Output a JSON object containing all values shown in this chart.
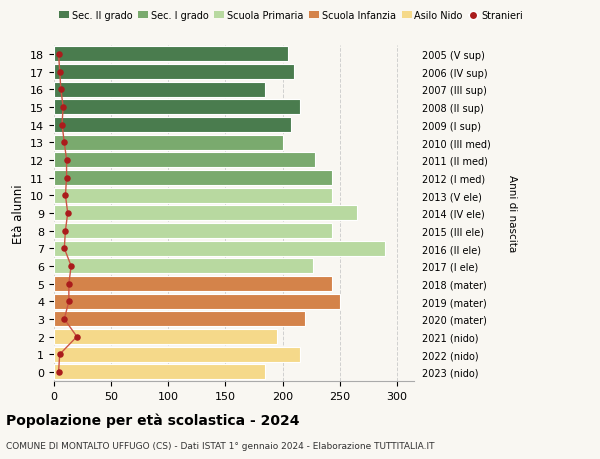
{
  "ages": [
    18,
    17,
    16,
    15,
    14,
    13,
    12,
    11,
    10,
    9,
    8,
    7,
    6,
    5,
    4,
    3,
    2,
    1,
    0
  ],
  "values": [
    205,
    210,
    185,
    215,
    207,
    200,
    228,
    243,
    243,
    265,
    243,
    290,
    227,
    243,
    250,
    220,
    195,
    215,
    185
  ],
  "stranieri": [
    4,
    5,
    6,
    8,
    7,
    9,
    11,
    11,
    10,
    12,
    10,
    9,
    15,
    13,
    13,
    9,
    20,
    5,
    4
  ],
  "right_labels": [
    "2005 (V sup)",
    "2006 (IV sup)",
    "2007 (III sup)",
    "2008 (II sup)",
    "2009 (I sup)",
    "2010 (III med)",
    "2011 (II med)",
    "2012 (I med)",
    "2013 (V ele)",
    "2014 (IV ele)",
    "2015 (III ele)",
    "2016 (II ele)",
    "2017 (I ele)",
    "2018 (mater)",
    "2019 (mater)",
    "2020 (mater)",
    "2021 (nido)",
    "2022 (nido)",
    "2023 (nido)"
  ],
  "bar_colors": [
    "#4a7c4e",
    "#4a7c4e",
    "#4a7c4e",
    "#4a7c4e",
    "#4a7c4e",
    "#7aaa6e",
    "#7aaa6e",
    "#7aaa6e",
    "#b8d9a0",
    "#b8d9a0",
    "#b8d9a0",
    "#b8d9a0",
    "#b8d9a0",
    "#d4834a",
    "#d4834a",
    "#d4834a",
    "#f5d98a",
    "#f5d98a",
    "#f5d98a"
  ],
  "stranieri_color": "#aa1c1c",
  "stranieri_line_color": "#cc5544",
  "legend_labels": [
    "Sec. II grado",
    "Sec. I grado",
    "Scuola Primaria",
    "Scuola Infanzia",
    "Asilo Nido",
    "Stranieri"
  ],
  "legend_colors": [
    "#4a7c4e",
    "#7aaa6e",
    "#b8d9a0",
    "#d4834a",
    "#f5d98a",
    "#aa1c1c"
  ],
  "ylabel": "Età alunni",
  "right_ylabel": "Anni di nascita",
  "title": "Popolazione per età scolastica - 2024",
  "subtitle": "COMUNE DI MONTALTO UFFUGO (CS) - Dati ISTAT 1° gennaio 2024 - Elaborazione TUTTITALIA.IT",
  "xlim": [
    0,
    315
  ],
  "xticks": [
    0,
    50,
    100,
    150,
    200,
    250,
    300
  ],
  "bg_color": "#f9f7f2",
  "grid_color": "#cccccc"
}
